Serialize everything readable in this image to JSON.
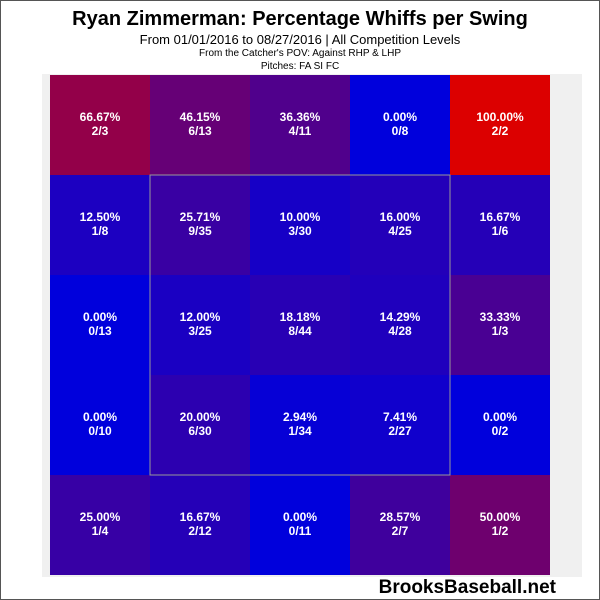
{
  "title": "Ryan Zimmerman: Percentage Whiffs per Swing",
  "subtitle": "From 01/01/2016 to 08/27/2016 | All Competition Levels",
  "subtitle2": "From the Catcher's POV:   Against RHP & LHP",
  "subtitle3": "Pitches:  FA  SI  FC",
  "watermark": "BrooksBaseball.net",
  "colors": {
    "low": "#0000dc",
    "high": "#dc0000",
    "strike_zone_border": "#999999",
    "text": "#ffffff"
  },
  "chart_data": {
    "type": "heatmap",
    "title": "Ryan Zimmerman: Percentage Whiffs per Swing",
    "rows": 5,
    "cols": 5,
    "strike_zone": {
      "rows": [
        1,
        3
      ],
      "cols": [
        1,
        3
      ]
    },
    "cells": [
      [
        {
          "pct": "66.67%",
          "frac": "2/3",
          "value": 66.67
        },
        {
          "pct": "46.15%",
          "frac": "6/13",
          "value": 46.15
        },
        {
          "pct": "36.36%",
          "frac": "4/11",
          "value": 36.36
        },
        {
          "pct": "0.00%",
          "frac": "0/8",
          "value": 0.0
        },
        {
          "pct": "100.00%",
          "frac": "2/2",
          "value": 100.0
        }
      ],
      [
        {
          "pct": "12.50%",
          "frac": "1/8",
          "value": 12.5
        },
        {
          "pct": "25.71%",
          "frac": "9/35",
          "value": 25.71
        },
        {
          "pct": "10.00%",
          "frac": "3/30",
          "value": 10.0
        },
        {
          "pct": "16.00%",
          "frac": "4/25",
          "value": 16.0
        },
        {
          "pct": "16.67%",
          "frac": "1/6",
          "value": 16.67
        }
      ],
      [
        {
          "pct": "0.00%",
          "frac": "0/13",
          "value": 0.0
        },
        {
          "pct": "12.00%",
          "frac": "3/25",
          "value": 12.0
        },
        {
          "pct": "18.18%",
          "frac": "8/44",
          "value": 18.18
        },
        {
          "pct": "14.29%",
          "frac": "4/28",
          "value": 14.29
        },
        {
          "pct": "33.33%",
          "frac": "1/3",
          "value": 33.33
        }
      ],
      [
        {
          "pct": "0.00%",
          "frac": "0/10",
          "value": 0.0
        },
        {
          "pct": "20.00%",
          "frac": "6/30",
          "value": 20.0
        },
        {
          "pct": "2.94%",
          "frac": "1/34",
          "value": 2.94
        },
        {
          "pct": "7.41%",
          "frac": "2/27",
          "value": 7.41
        },
        {
          "pct": "0.00%",
          "frac": "0/2",
          "value": 0.0
        }
      ],
      [
        {
          "pct": "25.00%",
          "frac": "1/4",
          "value": 25.0
        },
        {
          "pct": "16.67%",
          "frac": "2/12",
          "value": 16.67
        },
        {
          "pct": "0.00%",
          "frac": "0/11",
          "value": 0.0
        },
        {
          "pct": "28.57%",
          "frac": "2/7",
          "value": 28.57
        },
        {
          "pct": "50.00%",
          "frac": "1/2",
          "value": 50.0
        }
      ]
    ]
  }
}
